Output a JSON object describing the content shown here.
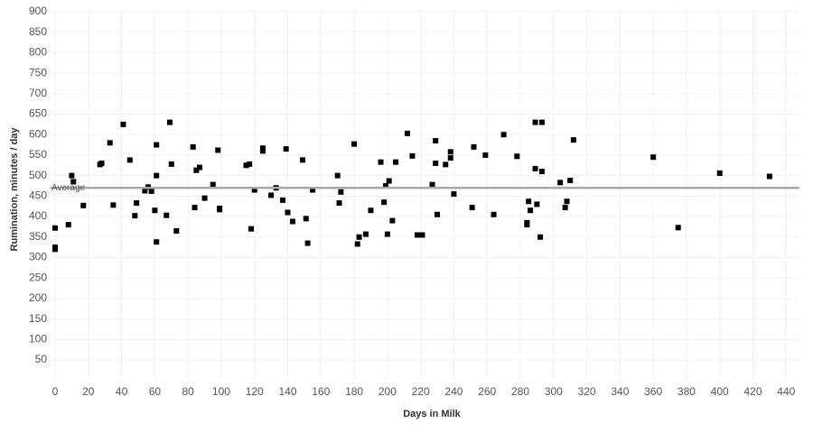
{
  "chart_data": {
    "type": "scatter",
    "x_label": "Days in Milk",
    "y_label": "Rumination, minutes / day",
    "xlim": [
      -3,
      448
    ],
    "ylim": [
      0,
      900
    ],
    "xticks": [
      0,
      20,
      40,
      60,
      80,
      100,
      120,
      140,
      160,
      180,
      200,
      220,
      240,
      260,
      280,
      300,
      320,
      340,
      360,
      380,
      400,
      420,
      440
    ],
    "yticks": [
      50,
      100,
      150,
      200,
      250,
      300,
      350,
      400,
      450,
      500,
      550,
      600,
      650,
      700,
      750,
      800,
      850,
      900
    ],
    "grid": true,
    "color": "#000000",
    "reference_line": {
      "label": "Average",
      "value": 470,
      "color": "#aaaaaa"
    },
    "x": [
      0,
      0,
      0,
      8,
      10,
      11,
      17,
      27,
      28,
      33,
      35,
      41,
      45,
      48,
      49,
      54,
      56,
      58,
      60,
      61,
      61,
      61,
      67,
      69,
      70,
      73,
      83,
      84,
      85,
      87,
      90,
      95,
      98,
      99,
      99,
      115,
      117,
      118,
      120,
      125,
      125,
      130,
      133,
      137,
      139,
      140,
      143,
      149,
      151,
      152,
      155,
      170,
      171,
      172,
      180,
      182,
      183,
      187,
      190,
      196,
      198,
      199,
      200,
      201,
      203,
      205,
      212,
      215,
      218,
      221,
      227,
      229,
      229,
      230,
      235,
      238,
      238,
      240,
      251,
      252,
      259,
      264,
      270,
      278,
      284,
      284,
      285,
      286,
      289,
      289,
      290,
      292,
      293,
      293,
      304,
      307,
      308,
      310,
      312,
      360,
      375,
      400,
      430
    ],
    "values": [
      320,
      325,
      372,
      380,
      500,
      485,
      427,
      527,
      530,
      580,
      428,
      625,
      538,
      402,
      433,
      463,
      472,
      462,
      415,
      500,
      575,
      338,
      403,
      630,
      528,
      365,
      570,
      422,
      513,
      520,
      445,
      478,
      562,
      420,
      417,
      525,
      528,
      370,
      465,
      567,
      560,
      452,
      470,
      440,
      565,
      410,
      388,
      538,
      395,
      335,
      465,
      500,
      433,
      460,
      577,
      333,
      350,
      357,
      415,
      533,
      435,
      475,
      357,
      487,
      390,
      533,
      603,
      548,
      355,
      355,
      478,
      530,
      585,
      405,
      527,
      558,
      543,
      455,
      422,
      570,
      550,
      405,
      600,
      547,
      385,
      380,
      437,
      415,
      630,
      517,
      430,
      350,
      630,
      510,
      483,
      422,
      437,
      488,
      587,
      545,
      373,
      506,
      498
    ]
  }
}
